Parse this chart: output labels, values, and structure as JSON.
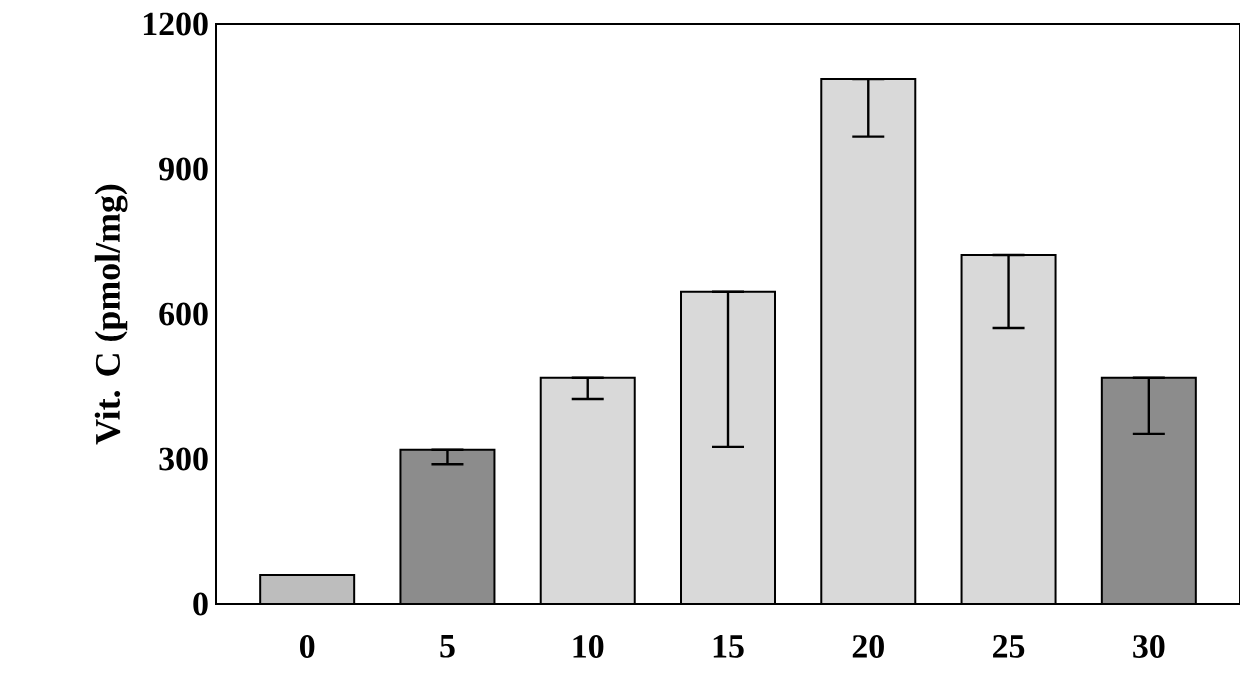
{
  "chart_data": {
    "type": "bar",
    "ylabel": "Vit. C (pmol/mg)",
    "categories": [
      "0",
      "5",
      "10",
      "15",
      "20",
      "25",
      "30"
    ],
    "values": [
      60,
      319,
      468,
      646,
      1086,
      722,
      468
    ],
    "errors": [
      null,
      [
        289,
        319
      ],
      [
        424,
        468
      ],
      [
        325,
        646
      ],
      [
        967,
        1086
      ],
      [
        571,
        722
      ],
      [
        352,
        468
      ]
    ],
    "colors": [
      "#bdbdbd",
      "#8c8c8c",
      "#d9d9d9",
      "#d9d9d9",
      "#d9d9d9",
      "#d9d9d9",
      "#8c8c8c"
    ],
    "ylim": [
      0,
      1200
    ],
    "yticks": [
      0,
      300,
      600,
      900,
      1200
    ],
    "grid": false
  }
}
